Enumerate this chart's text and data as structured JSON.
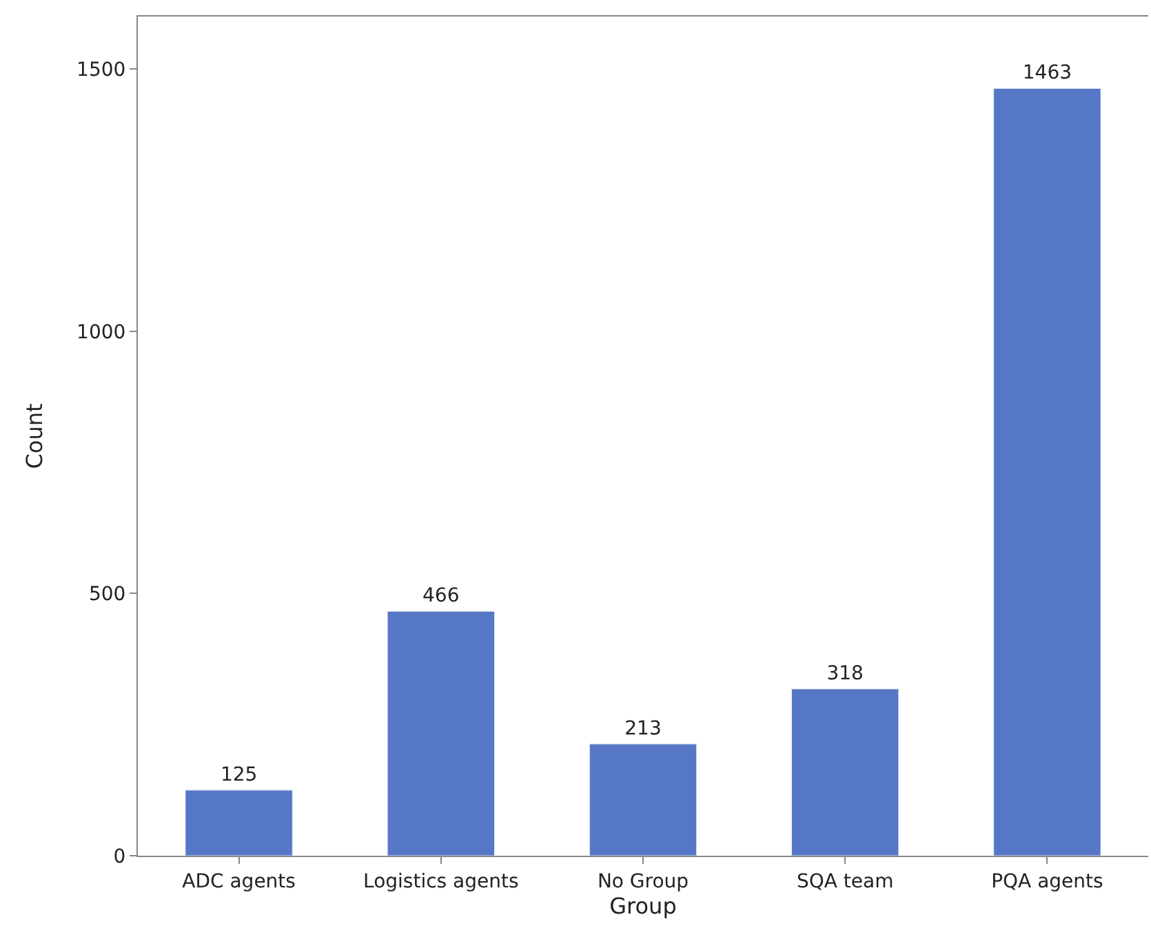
{
  "chart_data": {
    "type": "bar",
    "xlabel": "Group",
    "ylabel": "Count",
    "categories": [
      "ADC agents",
      "Logistics agents",
      "No Group",
      "SQA team",
      "PQA agents"
    ],
    "values": [
      125,
      466,
      213,
      318,
      1463
    ],
    "color": "#5577c5",
    "ylim": [
      0,
      1600
    ],
    "yticks": [
      0,
      500,
      1000,
      1500
    ],
    "data_labels": true
  }
}
